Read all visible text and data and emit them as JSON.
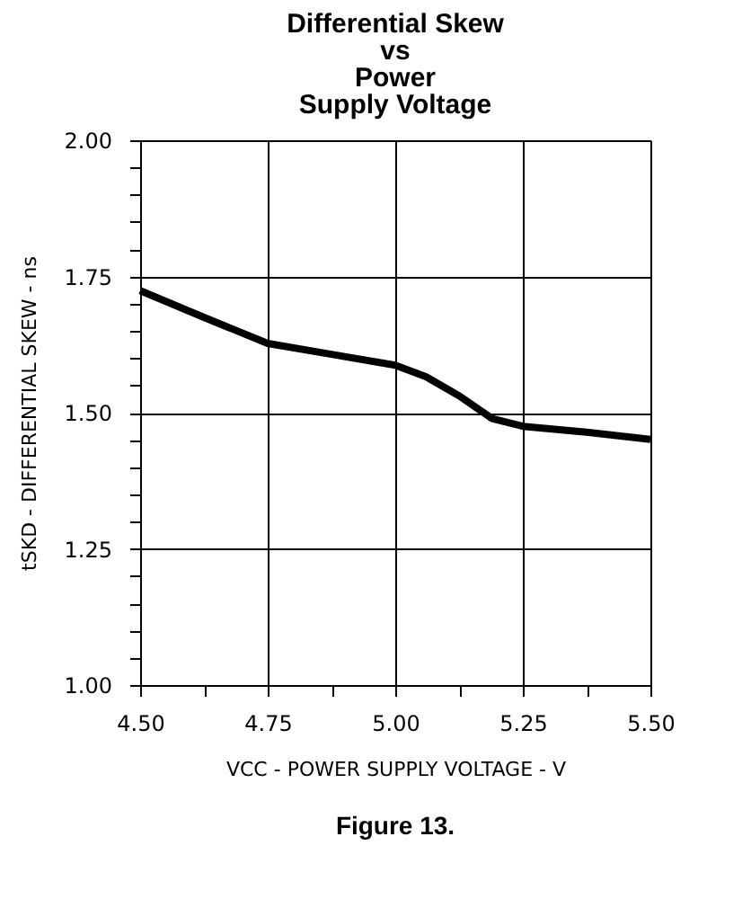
{
  "chart_data": {
    "type": "line",
    "title": [
      "Differential Skew",
      "vs",
      "Power",
      "Supply Voltage"
    ],
    "xlabel": "VCC - POWER SUPPLY VOLTAGE - V",
    "ylabel": "tSKD - DIFFERENTIAL SKEW - ns",
    "annotations": [
      "Figure 13."
    ],
    "x": [
      4.5,
      4.625,
      4.75,
      4.875,
      5.0,
      5.06,
      5.125,
      5.19,
      5.25,
      5.375,
      5.5
    ],
    "series": [
      {
        "color": "#000000",
        "values": [
          1.724,
          1.675,
          1.627,
          1.607,
          1.587,
          1.566,
          1.531,
          1.489,
          1.475,
          1.464,
          1.451
        ]
      }
    ],
    "xlim": [
      4.5,
      5.5
    ],
    "ylim": [
      1.0,
      2.0
    ],
    "xticks": [
      {
        "value": 4.5,
        "label": "4.50"
      },
      {
        "value": 4.625,
        "label": null
      },
      {
        "value": 4.75,
        "label": "4.75"
      },
      {
        "value": 4.875,
        "label": null
      },
      {
        "value": 5.0,
        "label": "5.00"
      },
      {
        "value": 5.125,
        "label": null
      },
      {
        "value": 5.25,
        "label": "5.25"
      },
      {
        "value": 5.375,
        "label": null
      },
      {
        "value": 5.5,
        "label": "5.50"
      }
    ],
    "yticks": [
      {
        "value": 1.0,
        "label": "1.00"
      },
      {
        "value": 1.05,
        "label": null
      },
      {
        "value": 1.1,
        "label": null
      },
      {
        "value": 1.15,
        "label": null
      },
      {
        "value": 1.2,
        "label": null
      },
      {
        "value": 1.25,
        "label": "1.25"
      },
      {
        "value": 1.3,
        "label": null
      },
      {
        "value": 1.35,
        "label": null
      },
      {
        "value": 1.4,
        "label": null
      },
      {
        "value": 1.45,
        "label": null
      },
      {
        "value": 1.5,
        "label": "1.50"
      },
      {
        "value": 1.55,
        "label": null
      },
      {
        "value": 1.6,
        "label": null
      },
      {
        "value": 1.65,
        "label": null
      },
      {
        "value": 1.7,
        "label": null
      },
      {
        "value": 1.75,
        "label": "1.75"
      },
      {
        "value": 1.8,
        "label": null
      },
      {
        "value": 1.85,
        "label": null
      },
      {
        "value": 1.9,
        "label": null
      },
      {
        "value": 1.95,
        "label": null
      },
      {
        "value": 2.0,
        "label": "2.00"
      }
    ],
    "grid": true,
    "marker": "none",
    "line_style": "solid"
  }
}
